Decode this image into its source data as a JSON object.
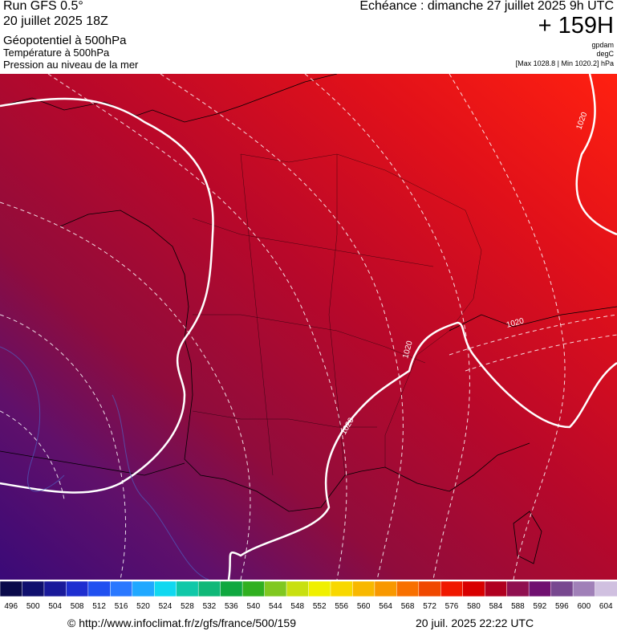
{
  "header": {
    "run": "Run GFS 0.5°",
    "run_date": "20 juillet 2025 18Z",
    "layer1": "Géopotentiel à 500hPa",
    "layer2": "Température à 500hPa",
    "layer3": "Pression au niveau de la mer",
    "valid": "Echéance : dimanche 27 juillet 2025 9h UTC",
    "lead": "+ 159H",
    "unit1": "gpdam",
    "unit2": "degC",
    "range": "[Max 1028.8 | Min 1020.2] hPa"
  },
  "map": {
    "isobar_labels": [
      "1020",
      "1020",
      "1020",
      "1020"
    ]
  },
  "legend": {
    "labels": [
      496,
      500,
      504,
      508,
      512,
      516,
      520,
      524,
      528,
      532,
      536,
      540,
      544,
      548,
      552,
      556,
      560,
      564,
      568,
      572,
      576,
      580,
      584,
      588,
      592,
      596,
      600,
      604
    ],
    "colors": [
      "#0a0a4a",
      "#10106e",
      "#1a1a9a",
      "#1e2ed0",
      "#2050f0",
      "#2a78ff",
      "#20a8ff",
      "#10d8f0",
      "#10c8a8",
      "#10b878",
      "#10a840",
      "#30b020",
      "#80c820",
      "#c8e010",
      "#f0f000",
      "#f8d800",
      "#f8b800",
      "#f89800",
      "#f87000",
      "#f04800",
      "#f01800",
      "#d80000",
      "#b00020",
      "#901050",
      "#701070",
      "#784890",
      "#a080b8",
      "#d0c0e0"
    ]
  },
  "footer": {
    "url": "© http://www.infoclimat.fr/z/gfs/france/500/159",
    "generated": "20 juil. 2025 22:22 UTC"
  }
}
